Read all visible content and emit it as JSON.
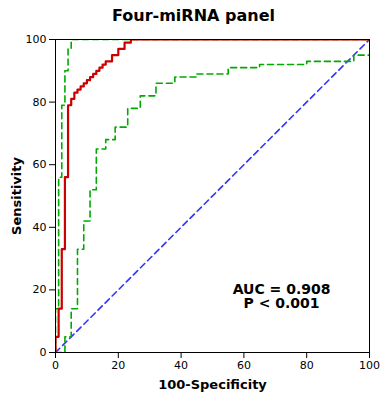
{
  "chart_data": {
    "type": "line",
    "title": "Four-miRNA panel",
    "xlabel": "100-Specificity",
    "ylabel": "Sensitivity",
    "xlim": [
      0,
      100
    ],
    "ylim": [
      0,
      100
    ],
    "xticks": [
      0,
      20,
      40,
      60,
      80,
      100
    ],
    "yticks": [
      0,
      20,
      40,
      60,
      80,
      100
    ],
    "grid": false,
    "series": [
      {
        "color": "#3333ff",
        "line_style": "dashed",
        "x": [
          0,
          100
        ],
        "values": [
          0,
          100
        ]
      },
      {
        "color": "#00aa00",
        "line_style": "dashed",
        "x": [
          0,
          0,
          1,
          1,
          2,
          2,
          3,
          3,
          4,
          4,
          5,
          5,
          100
        ],
        "values": [
          0,
          14,
          14,
          56,
          56,
          79,
          79,
          90,
          90,
          97,
          97,
          100,
          100
        ]
      },
      {
        "color": "#00aa00",
        "line_style": "dashed",
        "x": [
          0,
          0,
          3,
          3,
          5,
          5,
          7,
          7,
          9,
          9,
          11,
          11,
          13,
          13,
          16,
          16,
          19,
          19,
          23,
          23,
          27,
          27,
          32,
          32,
          38,
          38,
          45,
          45,
          55,
          55,
          65,
          65,
          80,
          80,
          95,
          95,
          100,
          100
        ],
        "values": [
          0,
          0,
          0,
          5,
          5,
          14,
          14,
          33,
          33,
          42,
          42,
          52,
          52,
          65,
          65,
          68,
          68,
          72,
          72,
          78,
          78,
          82,
          82,
          86,
          86,
          88,
          88,
          89,
          89,
          91,
          91,
          92,
          92,
          93,
          93,
          95,
          95,
          95
        ]
      },
      {
        "color": "#cc0000",
        "line_style": "solid",
        "x": [
          0,
          0,
          1,
          1,
          2,
          2,
          3,
          3,
          4,
          4,
          5,
          5,
          6,
          6,
          7,
          7,
          8,
          8,
          9,
          9,
          10,
          10,
          11,
          11,
          12,
          12,
          13,
          13,
          14,
          14,
          15,
          15,
          16,
          16,
          18,
          18,
          20,
          20,
          22,
          22,
          24,
          24,
          55,
          55,
          100
        ],
        "values": [
          0,
          5,
          5,
          14,
          14,
          33,
          33,
          56,
          56,
          79,
          79,
          81,
          81,
          83,
          83,
          84,
          84,
          85,
          85,
          86,
          86,
          87,
          87,
          88,
          88,
          89,
          89,
          90,
          90,
          91,
          91,
          92,
          92,
          93,
          93,
          95,
          95,
          97,
          97,
          99,
          99,
          100,
          100,
          100,
          100
        ]
      }
    ],
    "annotations": [
      {
        "text": "AUC = 0.908\nP < 0.001",
        "x": 72,
        "y": 18
      }
    ]
  }
}
